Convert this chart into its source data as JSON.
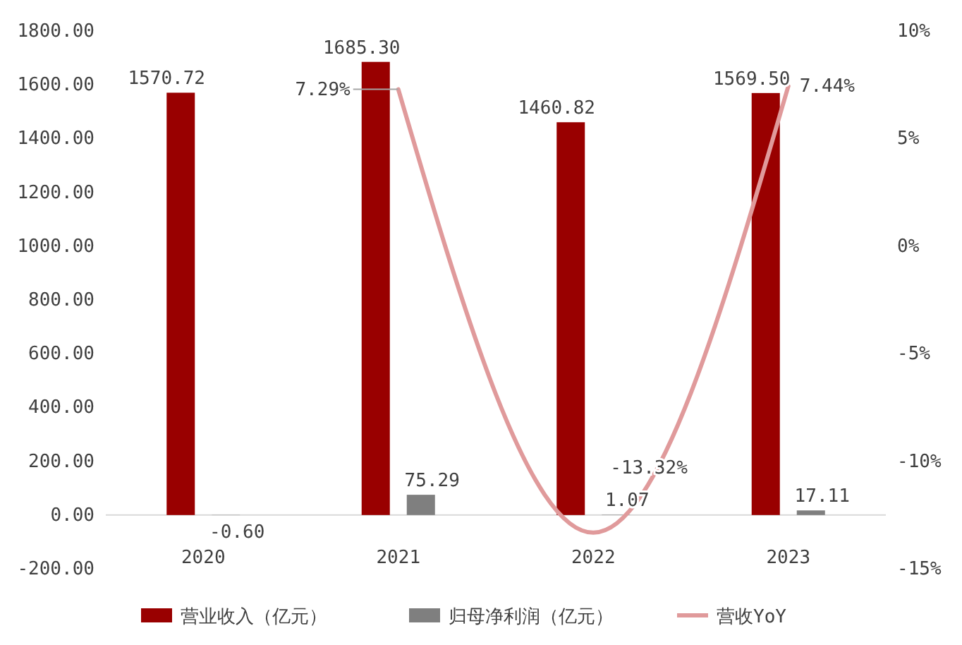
{
  "chart_data": {
    "type": "bar",
    "categories": [
      "2020",
      "2021",
      "2022",
      "2023"
    ],
    "series": [
      {
        "name": "营业收入（亿元）",
        "color": "#990000",
        "values": [
          1570.72,
          1685.3,
          1460.82,
          1569.5
        ],
        "value_labels": [
          "1570.72",
          "1685.30",
          "1460.82",
          "1569.50"
        ]
      },
      {
        "name": "归母净利润（亿元）",
        "color": "#7f7f7f",
        "values": [
          -0.6,
          75.29,
          1.07,
          17.11
        ],
        "value_labels": [
          "-0.60",
          "75.29",
          "1.07",
          "17.11"
        ]
      },
      {
        "name": "营收YoY",
        "type": "line",
        "axis": "y2",
        "color": "#e09a9b",
        "values": [
          null,
          7.29,
          -13.32,
          7.44
        ],
        "value_labels": [
          null,
          "7.29%",
          "-13.32%",
          "7.44%"
        ]
      }
    ],
    "ylim": [
      -200,
      1800
    ],
    "yticks": [
      {
        "value": -200,
        "label": "-200.00"
      },
      {
        "value": 0,
        "label": "0.00"
      },
      {
        "value": 200,
        "label": "200.00"
      },
      {
        "value": 400,
        "label": "400.00"
      },
      {
        "value": 600,
        "label": "600.00"
      },
      {
        "value": 800,
        "label": "800.00"
      },
      {
        "value": 1000,
        "label": "1000.00"
      },
      {
        "value": 1200,
        "label": "1200.00"
      },
      {
        "value": 1400,
        "label": "1400.00"
      },
      {
        "value": 1600,
        "label": "1600.00"
      },
      {
        "value": 1800,
        "label": "1800.00"
      }
    ],
    "y2lim": [
      -15,
      10
    ],
    "y2ticks": [
      {
        "value": -15,
        "label": "-15%"
      },
      {
        "value": -10,
        "label": "-10%"
      },
      {
        "value": -5,
        "label": "-5%"
      },
      {
        "value": 0,
        "label": "0%"
      },
      {
        "value": 5,
        "label": "5%"
      },
      {
        "value": 10,
        "label": "10%"
      }
    ],
    "legend": "bottom",
    "grid": false,
    "marker": "none",
    "line_style": "solid"
  }
}
